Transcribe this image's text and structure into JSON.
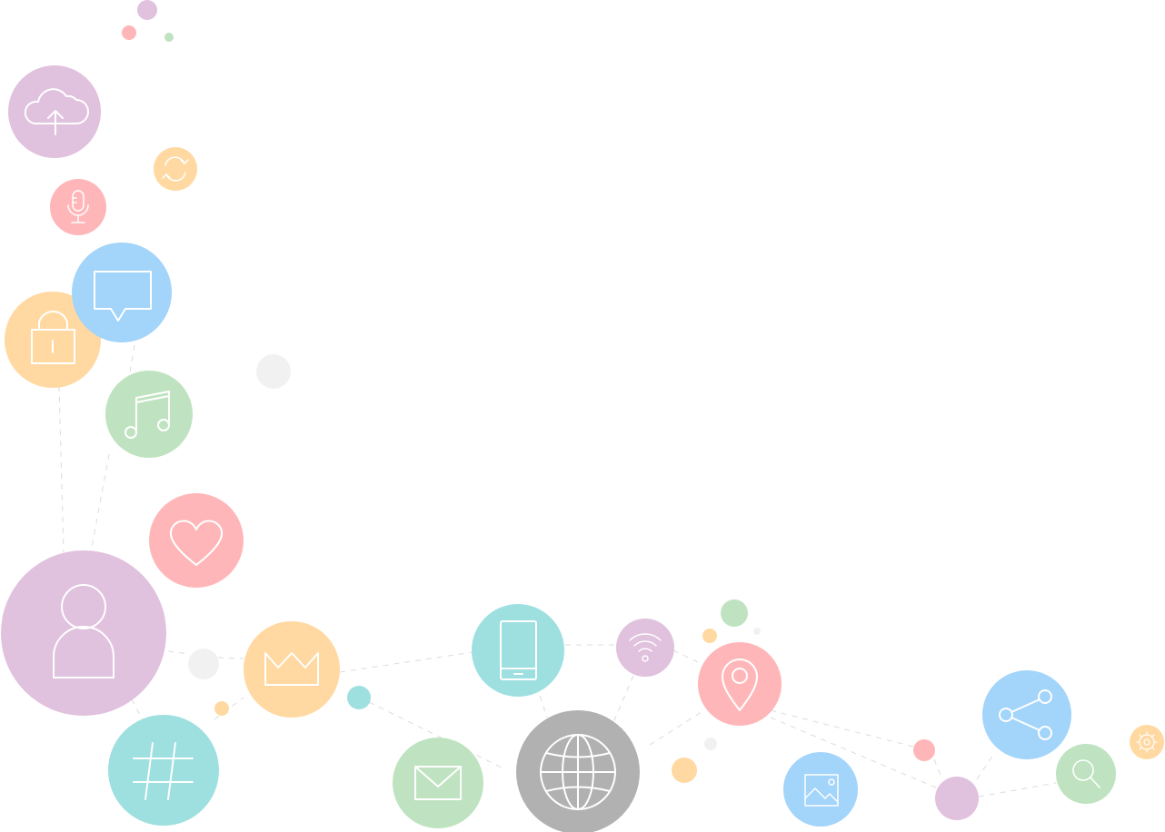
{
  "palette": {
    "purple": "#e0c1de",
    "pink": "#ffb6b8",
    "green": "#bfe3c0",
    "blue": "#a3d4fa",
    "orange": "#ffd9a1",
    "teal": "#9edfe0",
    "gray": "#b1b1b1",
    "light-gray": "#f1f1f1",
    "line": "#dcdcdc"
  },
  "icons": [
    "cloud-upload-icon",
    "refresh-icon",
    "microphone-icon",
    "chat-bubble-icon",
    "lock-icon",
    "music-note-icon",
    "heart-icon",
    "user-icon",
    "hashtag-icon",
    "crown-icon",
    "envelope-icon",
    "smartphone-icon",
    "globe-icon",
    "wifi-icon",
    "location-pin-icon",
    "image-icon",
    "share-icon",
    "search-icon",
    "gear-icon"
  ]
}
